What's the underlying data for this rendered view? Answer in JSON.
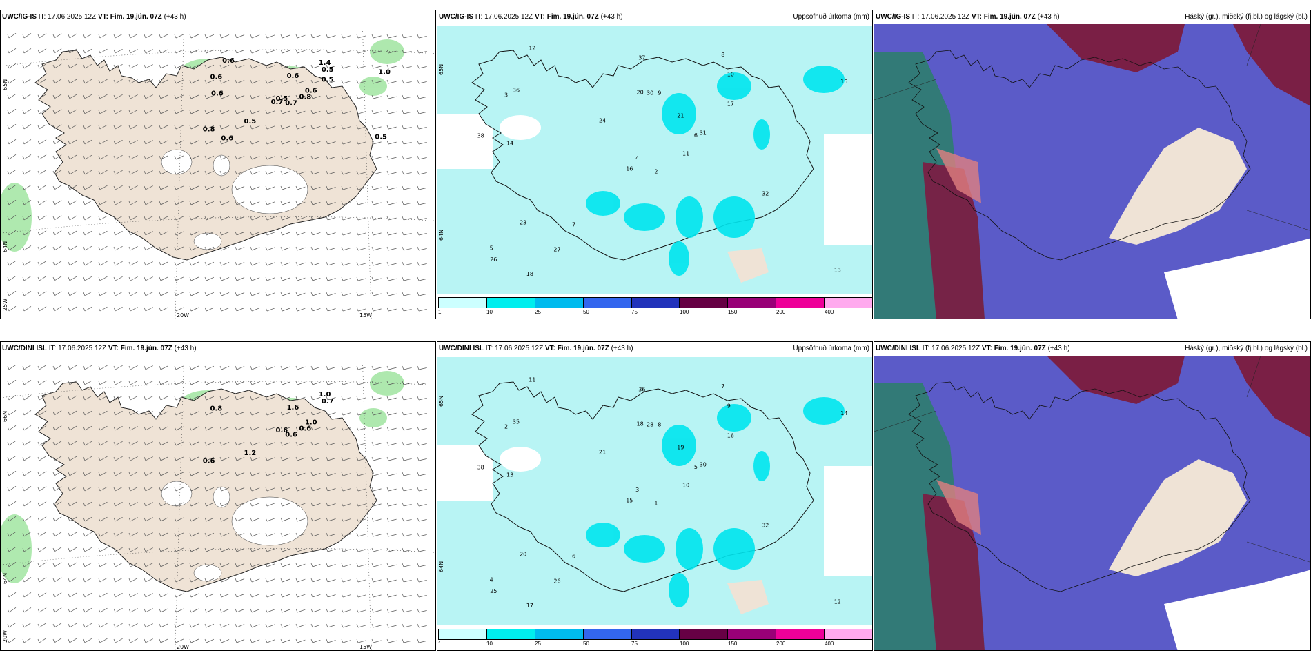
{
  "panels": [
    {
      "model": "UWC/IG-IS",
      "info": "IT: 17.06.2025 12Z",
      "vt": "VT: Fim. 19.jún. 07Z",
      "lead": "(+43 h)",
      "subtitle": "",
      "kind": "wind",
      "grid_labels": {
        "lat_top": "65N",
        "lat_mid": "64N",
        "lat_bot": "25W",
        "lon_a": "20W",
        "lon_b": "15W"
      },
      "values": [
        "0.7",
        "0.6",
        "0.5",
        "0.8",
        "0.6",
        "0.5",
        "1.4",
        "0.6",
        "0.5",
        "0.8",
        "0.6",
        "0.5",
        "0.6",
        "1.0",
        "0.7",
        "0.5",
        "0.6"
      ]
    },
    {
      "model": "UWC/IG-IS",
      "info": "IT: 17.06.2025 12Z",
      "vt": "VT: Fim. 19.jún. 07Z",
      "lead": "(+43 h)",
      "subtitle": "Uppsöfnuð úrkoma (mm)",
      "kind": "precip",
      "grid_labels": {
        "lat_top": "65N",
        "lat_mid": "64N"
      },
      "values": [
        "2",
        "3",
        "4",
        "5",
        "6",
        "7",
        "8",
        "9",
        "10",
        "11",
        "12",
        "13",
        "14",
        "15",
        "16",
        "17",
        "18",
        "20",
        "21",
        "23",
        "24",
        "26",
        "27",
        "30",
        "31",
        "32",
        "36",
        "37",
        "38"
      ]
    },
    {
      "model": "UWC/IG-IS",
      "info": "IT: 17.06.2025 12Z",
      "vt": "VT: Fim. 19.jún. 07Z",
      "lead": "(+43 h)",
      "subtitle": "Háský (gr.), miðský (fj.bl.) og lágský (bl.)",
      "kind": "cloud"
    },
    {
      "model": "UWC/DINI ISL",
      "info": "IT: 17.06.2025 12Z",
      "vt": "VT: Fim. 19.jún. 07Z",
      "lead": "(+43 h)",
      "subtitle": "",
      "kind": "wind",
      "grid_labels": {
        "lat_top": "66N",
        "lat_mid": "64N",
        "lat_bot": "20W",
        "lon_a": "20W",
        "lon_b": "15W"
      },
      "values": [
        "0.6",
        "0.8",
        "0.6",
        "0.6",
        "1.0",
        "1.2",
        "1.0",
        "1.6",
        "0.7",
        "0.6"
      ]
    },
    {
      "model": "UWC/DINI ISL",
      "info": "IT: 17.06.2025 12Z",
      "vt": "VT: Fim. 19.jún. 07Z",
      "lead": "(+43 h)",
      "subtitle": "Uppsöfnuð úrkoma (mm)",
      "kind": "precip",
      "grid_labels": {
        "lat_top": "65N",
        "lat_mid": "64N"
      },
      "values": [
        "1",
        "2",
        "3",
        "4",
        "5",
        "6",
        "7",
        "8",
        "9",
        "10",
        "11",
        "12",
        "13",
        "14",
        "15",
        "16",
        "17",
        "18",
        "19",
        "20",
        "21",
        "25",
        "26",
        "28",
        "30",
        "32",
        "35",
        "36",
        "38"
      ]
    },
    {
      "model": "UWC/DINI ISL",
      "info": "IT: 17.06.2025 12Z",
      "vt": "VT: Fim. 19.jún. 07Z",
      "lead": "(+43 h)",
      "subtitle": "Háský (gr.), miðský (fj.bl.) og lágský (bl.)",
      "kind": "cloud"
    }
  ],
  "colorbar": {
    "ticks": [
      "1",
      "10",
      "25",
      "50",
      "75",
      "100",
      "150",
      "200",
      "400"
    ],
    "colors": [
      "#ccffff",
      "#00eeee",
      "#00bbee",
      "#3366ee",
      "#2233bb",
      "#660044",
      "#990077",
      "#ee0099",
      "#ffaaee"
    ]
  },
  "colors": {
    "land": "#efe3d6",
    "ocean_precip": "#b8f4f4",
    "high_cloud": "#7a1f45",
    "mid_cloud": "#5b5bc8",
    "low_cloud": "#2e7d6e",
    "wind_green": "#9be39b"
  }
}
